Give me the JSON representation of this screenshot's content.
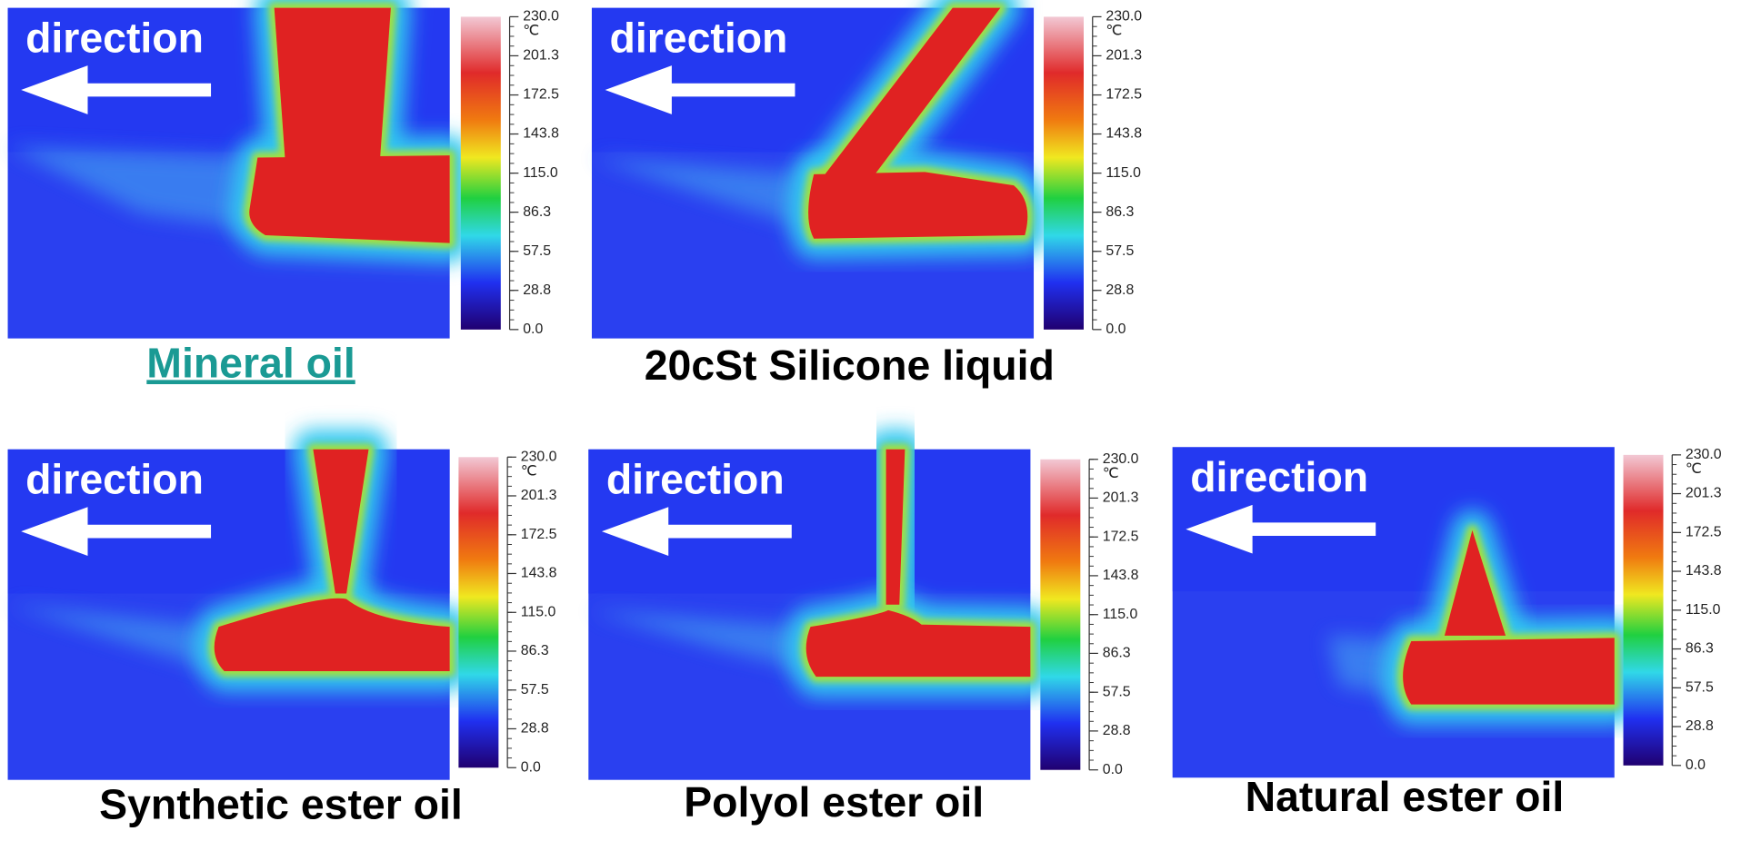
{
  "direction_label": "direction",
  "colorbar": {
    "unit": "℃",
    "lim": [
      0,
      230
    ],
    "ticks": [
      {
        "value": 230,
        "label": "230.0"
      },
      {
        "value": 201.3,
        "label": "201.3"
      },
      {
        "value": 172.5,
        "label": "172.5"
      },
      {
        "value": 143.8,
        "label": "143.8"
      },
      {
        "value": 115,
        "label": "115.0"
      },
      {
        "value": 86.3,
        "label": "86.3"
      },
      {
        "value": 57.5,
        "label": "57.5"
      },
      {
        "value": 28.8,
        "label": "28.8"
      },
      {
        "value": 0,
        "label": "0.0"
      }
    ]
  },
  "panels": [
    {
      "label": "Mineral oil",
      "link": true
    },
    {
      "label": "20cSt Silicone liquid",
      "link": false
    },
    {
      "label": "Synthetic ester oil",
      "link": false
    },
    {
      "label": "Polyol ester oil",
      "link": false
    },
    {
      "label": "Natural ester oil",
      "link": false
    }
  ]
}
